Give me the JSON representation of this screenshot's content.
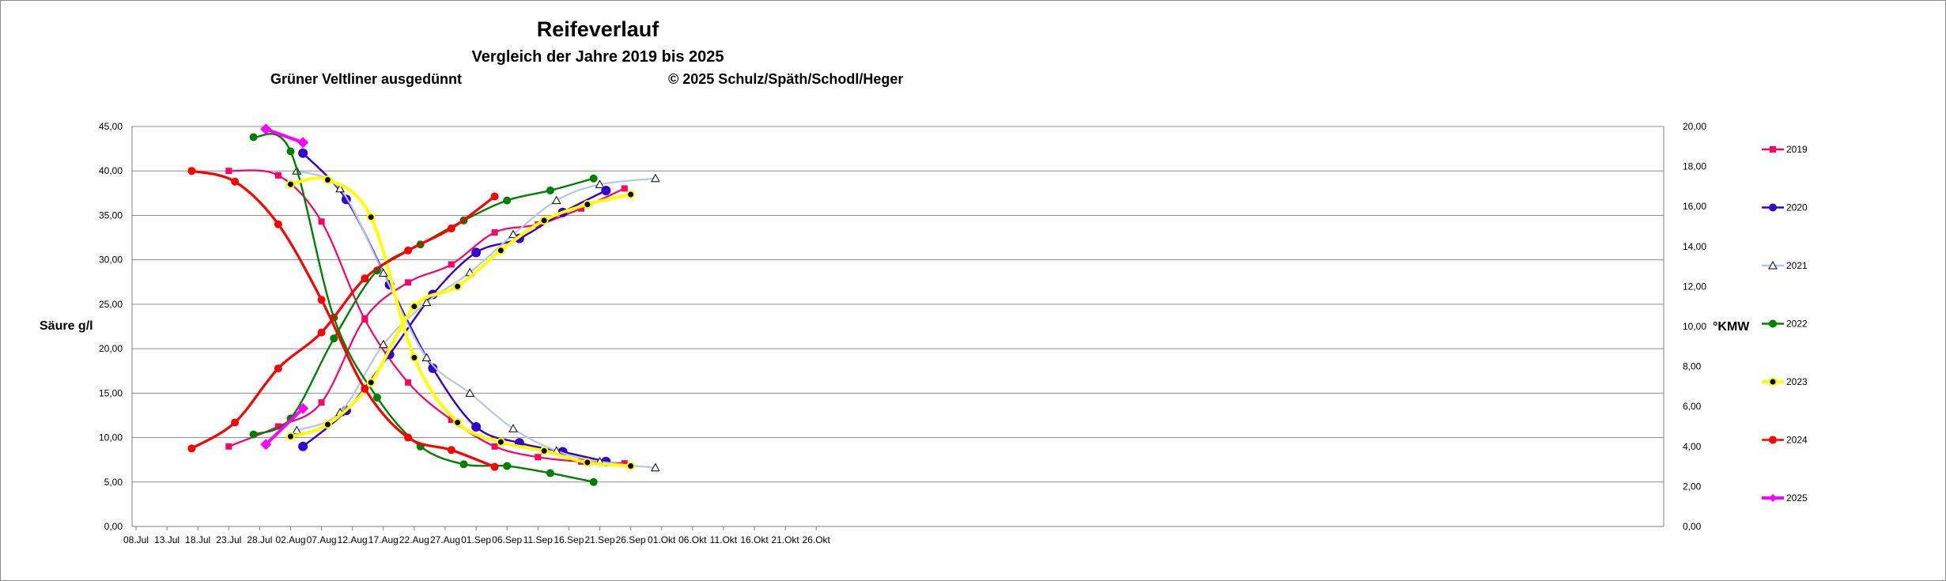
{
  "title": "Reifeverlauf",
  "subtitle": "Vergleich der Jahre 2019 bis 2025",
  "variety": "Grüner Veltliner ausgedünnt",
  "copyright": "© 2025  Schulz/Späth/Schodl/Heger",
  "chart_data": {
    "type": "line",
    "title": "Reifeverlauf",
    "ylabel": "Säure g/l",
    "y2label": "°KMW",
    "ylim": [
      0,
      45
    ],
    "y2lim": [
      0,
      20
    ],
    "grid": true,
    "legend_position": "right",
    "x_ticks": [
      "08.Jul",
      "13.Jul",
      "18.Jul",
      "23.Jul",
      "28.Jul",
      "02.Aug",
      "07.Aug",
      "12.Aug",
      "17.Aug",
      "22.Aug",
      "27.Aug",
      "01.Sep",
      "06.Sep",
      "11.Sep",
      "16.Sep",
      "21.Sep",
      "26.Sep",
      "01.Okt",
      "06.Okt",
      "11.Okt",
      "16.Okt",
      "21.Okt",
      "26.Okt"
    ],
    "y_ticks": [
      "0,00",
      "5,00",
      "10,00",
      "15,00",
      "20,00",
      "25,00",
      "30,00",
      "35,00",
      "40,00",
      "45,00"
    ],
    "y2_ticks": [
      "0,00",
      "2,00",
      "4,00",
      "6,00",
      "8,00",
      "10,00",
      "12,00",
      "14,00",
      "16,00",
      "18,00",
      "20,00"
    ],
    "series": [
      {
        "name": "2019",
        "color": "#ff0066",
        "marker": "square",
        "acid": [
          [
            23,
            40.0
          ],
          [
            31,
            39.5
          ],
          [
            38,
            34.3
          ],
          [
            45,
            23.3
          ],
          [
            52,
            16.2
          ],
          [
            59,
            12.0
          ],
          [
            66,
            9.0
          ],
          [
            73,
            7.8
          ],
          [
            80,
            7.3
          ],
          [
            87,
            7.1
          ]
        ],
        "kmw": [
          [
            23,
            4.0
          ],
          [
            31,
            5.0
          ],
          [
            38,
            6.2
          ],
          [
            45,
            10.4
          ],
          [
            52,
            12.2
          ],
          [
            59,
            13.1
          ],
          [
            66,
            14.7
          ],
          [
            73,
            15.1
          ],
          [
            80,
            15.9
          ],
          [
            87,
            16.9
          ]
        ]
      },
      {
        "name": "2020",
        "color": "#3300cc",
        "marker": "circle",
        "acid": [
          [
            35,
            42.0
          ],
          [
            42,
            36.8
          ],
          [
            49,
            27.2
          ],
          [
            56,
            17.8
          ],
          [
            63,
            11.2
          ],
          [
            70,
            9.4
          ],
          [
            77,
            8.4
          ],
          [
            84,
            7.3
          ]
        ],
        "kmw": [
          [
            35,
            4.0
          ],
          [
            42,
            5.8
          ],
          [
            49,
            8.6
          ],
          [
            56,
            11.6
          ],
          [
            63,
            13.7
          ],
          [
            70,
            14.4
          ],
          [
            77,
            15.7
          ],
          [
            84,
            16.8
          ]
        ]
      },
      {
        "name": "2021",
        "color": "#b4c6e7",
        "marker": "triangle",
        "acid": [
          [
            34,
            40.0
          ],
          [
            41,
            38.0
          ],
          [
            48,
            28.5
          ],
          [
            55,
            19.0
          ],
          [
            62,
            15.0
          ],
          [
            69,
            11.0
          ],
          [
            76,
            8.5
          ],
          [
            83,
            7.3
          ],
          [
            92,
            6.6
          ]
        ],
        "kmw": [
          [
            34,
            4.8
          ],
          [
            41,
            5.7
          ],
          [
            48,
            9.1
          ],
          [
            55,
            11.2
          ],
          [
            62,
            12.7
          ],
          [
            69,
            14.6
          ],
          [
            76,
            16.3
          ],
          [
            83,
            17.1
          ],
          [
            92,
            17.4
          ]
        ]
      },
      {
        "name": "2022",
        "color": "#008000",
        "marker": "circle",
        "acid": [
          [
            27,
            43.8
          ],
          [
            33,
            42.2
          ],
          [
            40,
            23.5
          ],
          [
            47,
            14.5
          ],
          [
            54,
            9.0
          ],
          [
            61,
            7.0
          ],
          [
            68,
            6.8
          ],
          [
            75,
            6.0
          ],
          [
            82,
            5.0
          ]
        ],
        "kmw": [
          [
            27,
            4.6
          ],
          [
            33,
            5.4
          ],
          [
            40,
            9.4
          ],
          [
            47,
            12.8
          ],
          [
            54,
            14.1
          ],
          [
            61,
            15.3
          ],
          [
            68,
            16.3
          ],
          [
            75,
            16.8
          ],
          [
            82,
            17.4
          ]
        ]
      },
      {
        "name": "2023",
        "color": "#ffff00",
        "marker": "circle",
        "acid": [
          [
            33,
            38.5
          ],
          [
            39,
            39.0
          ],
          [
            46,
            34.8
          ],
          [
            53,
            19.0
          ],
          [
            60,
            11.7
          ],
          [
            67,
            9.5
          ],
          [
            74,
            8.5
          ],
          [
            81,
            7.2
          ],
          [
            88,
            6.8
          ]
        ],
        "kmw": [
          [
            33,
            4.5
          ],
          [
            39,
            5.1
          ],
          [
            46,
            7.2
          ],
          [
            53,
            11.0
          ],
          [
            60,
            12.0
          ],
          [
            67,
            13.8
          ],
          [
            74,
            15.3
          ],
          [
            81,
            16.1
          ],
          [
            88,
            16.6
          ]
        ]
      },
      {
        "name": "2024",
        "color": "#ff0000",
        "marker": "circle",
        "acid": [
          [
            17,
            40.0
          ],
          [
            24,
            38.8
          ],
          [
            31,
            34.0
          ],
          [
            38,
            25.5
          ],
          [
            45,
            15.5
          ],
          [
            52,
            10.0
          ],
          [
            59,
            8.6
          ],
          [
            66,
            6.7
          ]
        ],
        "kmw": [
          [
            17,
            3.9
          ],
          [
            24,
            5.2
          ],
          [
            31,
            7.9
          ],
          [
            38,
            9.7
          ],
          [
            45,
            12.4
          ],
          [
            52,
            13.8
          ],
          [
            59,
            14.9
          ],
          [
            66,
            16.5
          ]
        ]
      },
      {
        "name": "2025",
        "color": "#ff00ff",
        "marker": "diamond",
        "acid": [
          [
            29,
            44.7
          ],
          [
            35,
            43.2
          ]
        ],
        "kmw": [
          [
            29,
            4.1
          ],
          [
            35,
            5.9
          ]
        ]
      }
    ]
  }
}
